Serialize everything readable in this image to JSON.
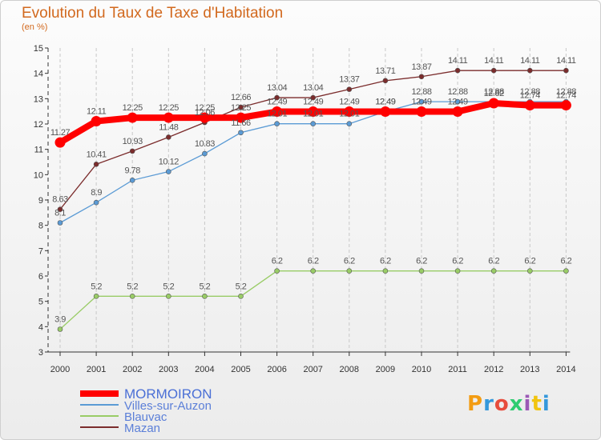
{
  "title": "Evolution du Taux de Taxe d'Habitation",
  "subtitle": "(en %)",
  "logo": {
    "text": "Proxiti"
  },
  "colors": {
    "title": "#d2691e",
    "axis": "#333333",
    "grid": "#cccccc"
  },
  "chart_data": {
    "type": "line",
    "title": "Evolution du Taux de Taxe d'Habitation",
    "ylabel": "(en %)",
    "xlabel": "",
    "ylim": [
      3,
      15
    ],
    "yticks": [
      3,
      4,
      5,
      6,
      7,
      8,
      9,
      10,
      11,
      12,
      13,
      14,
      15
    ],
    "x": [
      "2000",
      "2001",
      "2002",
      "2003",
      "2004",
      "2005",
      "2006",
      "2007",
      "2008",
      "2009",
      "2010",
      "2011",
      "2012",
      "2013",
      "2014"
    ],
    "grid": "vertical dashed",
    "legend": "bottom-left",
    "series": [
      {
        "name": "MORMOIRON",
        "color": "#ff0000",
        "values": [
          11.27,
          12.11,
          12.25,
          12.25,
          12.25,
          12.25,
          12.49,
          12.49,
          12.49,
          12.49,
          12.49,
          12.49,
          12.82,
          12.74,
          12.74
        ],
        "labels": [
          "11.27",
          "12.11",
          "12.25",
          "12.25",
          "12.25",
          "12.25",
          "12.49",
          "12.49",
          "12.49",
          "12.49",
          "12.49",
          "12.49",
          "12.82",
          "12.74",
          "12.74"
        ]
      },
      {
        "name": "Villes-sur-Auzon",
        "color": "#5b9bd5",
        "values": [
          8.1,
          8.9,
          9.78,
          10.12,
          10.83,
          11.66,
          12.01,
          12.01,
          12.01,
          12.49,
          12.88,
          12.88,
          12.88,
          12.88,
          12.88
        ],
        "labels": [
          "8.1",
          "8.9",
          "9.78",
          "10.12",
          "10.83",
          "11.66",
          "12.01",
          "12.01",
          "12.01",
          "12.49",
          "12.88",
          "12.88",
          "12.88",
          "12.88",
          "12.88"
        ]
      },
      {
        "name": "Blauvac",
        "color": "#99cc66",
        "values": [
          3.9,
          5.2,
          5.2,
          5.2,
          5.2,
          5.2,
          6.2,
          6.2,
          6.2,
          6.2,
          6.2,
          6.2,
          6.2,
          6.2,
          6.2
        ],
        "labels": [
          "3.9",
          "5.2",
          "5.2",
          "5.2",
          "5.2",
          "5.2",
          "6.2",
          "6.2",
          "6.2",
          "6.2",
          "6.2",
          "6.2",
          "6.2",
          "6.2",
          "6.2"
        ]
      },
      {
        "name": "Mazan",
        "color": "#7b2c2c",
        "values": [
          8.63,
          10.41,
          10.93,
          11.48,
          12.06,
          12.66,
          13.04,
          13.04,
          13.37,
          13.71,
          13.87,
          14.11,
          14.11,
          14.11,
          14.11
        ],
        "labels": [
          "8.63",
          "10.41",
          "10.93",
          "11.48",
          "12.06",
          "12.66",
          "13.04",
          "13.04",
          "13.37",
          "13.71",
          "13.87",
          "14.11",
          "14.11",
          "14.11",
          "14.11"
        ]
      }
    ]
  }
}
